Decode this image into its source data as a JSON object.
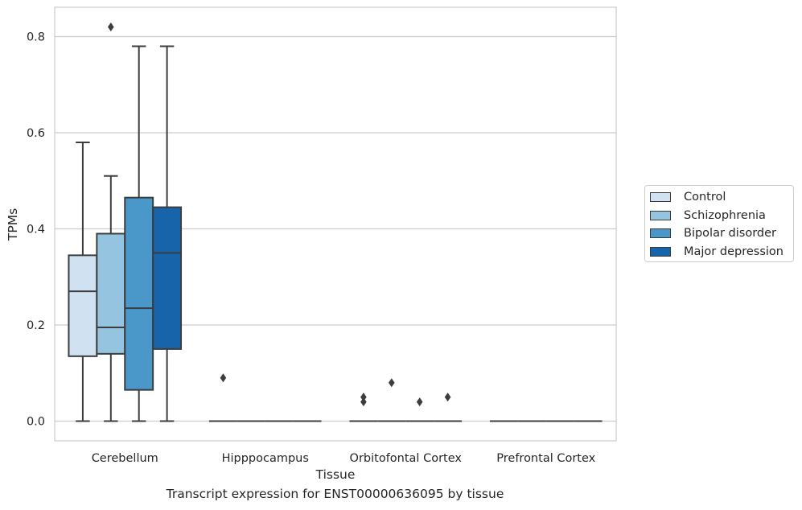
{
  "caption": "Transcript expression for ENST00000636095 by tissue",
  "chart_data": {
    "type": "box",
    "xlabel": "Tissue",
    "ylabel": "TPMs",
    "ylim": [
      -0.04,
      0.86
    ],
    "yticks": [
      0.0,
      0.2,
      0.4,
      0.6,
      0.8
    ],
    "ytick_labels": [
      "0.0",
      "0.2",
      "0.4",
      "0.6",
      "0.8"
    ],
    "categories": [
      "Cerebellum",
      "Hipppocampus",
      "Orbitofontal Cortex",
      "Prefrontal Cortex"
    ],
    "grid": true,
    "legend_position": "right",
    "series": [
      {
        "name": "Control",
        "color": "#d0e1f2",
        "boxes": [
          {
            "whislo": 0.0,
            "q1": 0.135,
            "med": 0.27,
            "q3": 0.345,
            "whishi": 0.58,
            "fliers": []
          },
          {
            "whislo": 0.0,
            "q1": 0.0,
            "med": 0.0,
            "q3": 0.0,
            "whishi": 0.0,
            "fliers": [
              0.09
            ]
          },
          {
            "whislo": 0.0,
            "q1": 0.0,
            "med": 0.0,
            "q3": 0.0,
            "whishi": 0.0,
            "fliers": [
              0.04,
              0.05
            ]
          },
          {
            "whislo": 0.0,
            "q1": 0.0,
            "med": 0.0,
            "q3": 0.0,
            "whishi": 0.0,
            "fliers": []
          }
        ]
      },
      {
        "name": "Schizophrenia",
        "color": "#94c4df",
        "boxes": [
          {
            "whislo": 0.0,
            "q1": 0.14,
            "med": 0.195,
            "q3": 0.39,
            "whishi": 0.51,
            "fliers": [
              0.82
            ]
          },
          {
            "whislo": 0.0,
            "q1": 0.0,
            "med": 0.0,
            "q3": 0.0,
            "whishi": 0.0,
            "fliers": []
          },
          {
            "whislo": 0.0,
            "q1": 0.0,
            "med": 0.0,
            "q3": 0.0,
            "whishi": 0.0,
            "fliers": [
              0.08
            ]
          },
          {
            "whislo": 0.0,
            "q1": 0.0,
            "med": 0.0,
            "q3": 0.0,
            "whishi": 0.0,
            "fliers": []
          }
        ]
      },
      {
        "name": "Bipolar disorder",
        "color": "#4a98c9",
        "boxes": [
          {
            "whislo": 0.0,
            "q1": 0.065,
            "med": 0.235,
            "q3": 0.465,
            "whishi": 0.78,
            "fliers": []
          },
          {
            "whislo": 0.0,
            "q1": 0.0,
            "med": 0.0,
            "q3": 0.0,
            "whishi": 0.0,
            "fliers": []
          },
          {
            "whislo": 0.0,
            "q1": 0.0,
            "med": 0.0,
            "q3": 0.0,
            "whishi": 0.0,
            "fliers": [
              0.04
            ]
          },
          {
            "whislo": 0.0,
            "q1": 0.0,
            "med": 0.0,
            "q3": 0.0,
            "whishi": 0.0,
            "fliers": []
          }
        ]
      },
      {
        "name": "Major depression",
        "color": "#1764ab",
        "boxes": [
          {
            "whislo": 0.0,
            "q1": 0.15,
            "med": 0.35,
            "q3": 0.445,
            "whishi": 0.78,
            "fliers": []
          },
          {
            "whislo": 0.0,
            "q1": 0.0,
            "med": 0.0,
            "q3": 0.0,
            "whishi": 0.0,
            "fliers": []
          },
          {
            "whislo": 0.0,
            "q1": 0.0,
            "med": 0.0,
            "q3": 0.0,
            "whishi": 0.0,
            "fliers": [
              0.05
            ]
          },
          {
            "whislo": 0.0,
            "q1": 0.0,
            "med": 0.0,
            "q3": 0.0,
            "whishi": 0.0,
            "fliers": []
          }
        ]
      }
    ]
  }
}
